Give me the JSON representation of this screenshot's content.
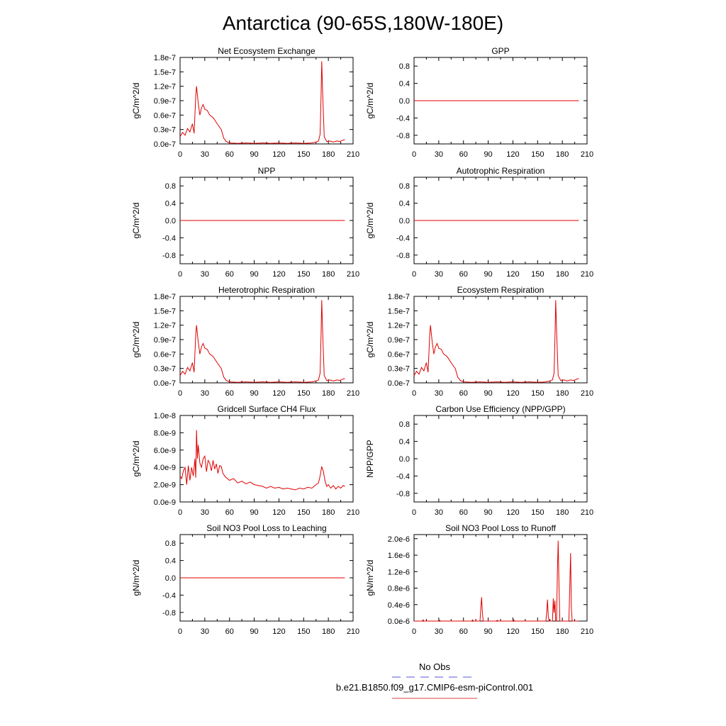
{
  "figure": {
    "title": "Antarctica (90-65S,180W-180E)"
  },
  "legend": {
    "entries": [
      {
        "label": "No Obs",
        "color": "#5555dd",
        "dashed": true
      },
      {
        "label": "b.e21.B1850.f09_g17.CMIP6-esm-piControl.001",
        "color": "#e04040",
        "dashed": false
      }
    ]
  },
  "colors": {
    "series": "#e00000",
    "axis": "#000000"
  },
  "chart_data": [
    {
      "type": "line",
      "title": "Net Ecosystem Exchange",
      "ylabel": "gC/m^2/d",
      "xlim": [
        0,
        210
      ],
      "ylim": [
        0,
        1.8e-07
      ],
      "xticks": [
        0,
        30,
        60,
        90,
        120,
        150,
        180,
        210
      ],
      "yticks": [
        0,
        3e-08,
        6e-08,
        9e-08,
        1.2e-07,
        1.5e-07,
        1.8e-07
      ],
      "ytick_labels": [
        "0.0e-7",
        "0.3e-7",
        "0.6e-7",
        "0.9e-7",
        "1.2e-7",
        "1.5e-7",
        "1.8e-7"
      ],
      "series": [
        {
          "x": [
            0,
            3,
            6,
            9,
            12,
            15,
            17,
            19,
            20,
            22,
            24,
            26,
            28,
            30,
            33,
            36,
            40,
            45,
            50,
            53,
            56,
            60,
            70,
            80,
            90,
            100,
            110,
            120,
            130,
            140,
            150,
            160,
            165,
            168,
            170,
            171,
            172,
            173,
            175,
            178,
            182,
            186,
            190,
            194,
            198,
            200
          ],
          "y": [
            1.5e-08,
            2.4e-08,
            1.8e-08,
            3.2e-08,
            2.5e-08,
            4.2e-08,
            2.2e-08,
            1e-07,
            1.2e-07,
            8.5e-08,
            6e-08,
            7.5e-08,
            8.2e-08,
            7.2e-08,
            7e-08,
            6e-08,
            5.5e-08,
            4.2e-08,
            3e-08,
            1.2e-08,
            5e-09,
            2e-09,
            1e-09,
            2e-09,
            1e-09,
            2e-09,
            1e-09,
            2e-09,
            1e-09,
            2e-09,
            1e-09,
            2e-09,
            4e-09,
            6e-09,
            2e-08,
            9e-08,
            1.72e-07,
            1.1e-07,
            1.5e-08,
            5e-09,
            6e-09,
            4e-09,
            6e-09,
            5e-09,
            8e-09,
            9e-09
          ]
        }
      ]
    },
    {
      "type": "line",
      "title": "GPP",
      "ylabel": "gC/m^2/d",
      "xlim": [
        0,
        210
      ],
      "ylim": [
        -1,
        1
      ],
      "xticks": [
        0,
        30,
        60,
        90,
        120,
        150,
        180,
        210
      ],
      "yticks": [
        -0.8,
        -0.4,
        0,
        0.4,
        0.8
      ],
      "ytick_labels": [
        "-0.8",
        "-0.4",
        "0.0",
        "0.4",
        "0.8"
      ],
      "series": [
        {
          "x": [
            0,
            200
          ],
          "y": [
            0,
            0
          ]
        }
      ]
    },
    {
      "type": "line",
      "title": "NPP",
      "ylabel": "gC/m^2/d",
      "xlim": [
        0,
        210
      ],
      "ylim": [
        -1,
        1
      ],
      "xticks": [
        0,
        30,
        60,
        90,
        120,
        150,
        180,
        210
      ],
      "yticks": [
        -0.8,
        -0.4,
        0,
        0.4,
        0.8
      ],
      "ytick_labels": [
        "-0.8",
        "-0.4",
        "0.0",
        "0.4",
        "0.8"
      ],
      "series": [
        {
          "x": [
            0,
            200
          ],
          "y": [
            0,
            0
          ]
        }
      ]
    },
    {
      "type": "line",
      "title": "Autotrophic Respiration",
      "ylabel": "gC/m^2/d",
      "xlim": [
        0,
        210
      ],
      "ylim": [
        -1,
        1
      ],
      "xticks": [
        0,
        30,
        60,
        90,
        120,
        150,
        180,
        210
      ],
      "yticks": [
        -0.8,
        -0.4,
        0,
        0.4,
        0.8
      ],
      "ytick_labels": [
        "-0.8",
        "-0.4",
        "0.0",
        "0.4",
        "0.8"
      ],
      "series": [
        {
          "x": [
            0,
            200
          ],
          "y": [
            0,
            0
          ]
        }
      ]
    },
    {
      "type": "line",
      "title": "Heterotrophic Respiration",
      "ylabel": "gC/m^2/d",
      "xlim": [
        0,
        210
      ],
      "ylim": [
        0,
        1.8e-07
      ],
      "xticks": [
        0,
        30,
        60,
        90,
        120,
        150,
        180,
        210
      ],
      "yticks": [
        0,
        3e-08,
        6e-08,
        9e-08,
        1.2e-07,
        1.5e-07,
        1.8e-07
      ],
      "ytick_labels": [
        "0.0e-7",
        "0.3e-7",
        "0.6e-7",
        "0.9e-7",
        "1.2e-7",
        "1.5e-7",
        "1.8e-7"
      ],
      "series": [
        {
          "x": [
            0,
            3,
            6,
            9,
            12,
            15,
            17,
            19,
            20,
            22,
            24,
            26,
            28,
            30,
            33,
            36,
            40,
            45,
            50,
            53,
            56,
            60,
            70,
            80,
            90,
            100,
            110,
            120,
            130,
            140,
            150,
            160,
            165,
            168,
            170,
            171,
            172,
            173,
            175,
            178,
            182,
            186,
            190,
            194,
            198,
            200
          ],
          "y": [
            1.5e-08,
            2.4e-08,
            1.8e-08,
            3.2e-08,
            2.5e-08,
            4.2e-08,
            2.2e-08,
            1e-07,
            1.2e-07,
            8.5e-08,
            6e-08,
            7.5e-08,
            8.2e-08,
            7.2e-08,
            7e-08,
            6e-08,
            5.5e-08,
            4.2e-08,
            3e-08,
            1.2e-08,
            5e-09,
            2e-09,
            1e-09,
            2e-09,
            1e-09,
            2e-09,
            1e-09,
            2e-09,
            1e-09,
            2e-09,
            1e-09,
            2e-09,
            4e-09,
            6e-09,
            2e-08,
            9e-08,
            1.72e-07,
            1.1e-07,
            1.5e-08,
            5e-09,
            6e-09,
            4e-09,
            6e-09,
            5e-09,
            8e-09,
            9e-09
          ]
        }
      ]
    },
    {
      "type": "line",
      "title": "Ecosystem Respiration",
      "ylabel": "gC/m^2/d",
      "xlim": [
        0,
        210
      ],
      "ylim": [
        0,
        1.8e-07
      ],
      "xticks": [
        0,
        30,
        60,
        90,
        120,
        150,
        180,
        210
      ],
      "yticks": [
        0,
        3e-08,
        6e-08,
        9e-08,
        1.2e-07,
        1.5e-07,
        1.8e-07
      ],
      "ytick_labels": [
        "0.0e-7",
        "0.3e-7",
        "0.6e-7",
        "0.9e-7",
        "1.2e-7",
        "1.5e-7",
        "1.8e-7"
      ],
      "series": [
        {
          "x": [
            0,
            3,
            6,
            9,
            12,
            15,
            17,
            19,
            20,
            22,
            24,
            26,
            28,
            30,
            33,
            36,
            40,
            45,
            50,
            53,
            56,
            60,
            70,
            80,
            90,
            100,
            110,
            120,
            130,
            140,
            150,
            160,
            165,
            168,
            170,
            171,
            172,
            173,
            175,
            178,
            182,
            186,
            190,
            194,
            198,
            200
          ],
          "y": [
            1.5e-08,
            2.4e-08,
            1.8e-08,
            3.2e-08,
            2.5e-08,
            4.2e-08,
            2.2e-08,
            1e-07,
            1.2e-07,
            8.5e-08,
            6e-08,
            7.5e-08,
            8.2e-08,
            7.2e-08,
            7e-08,
            6e-08,
            5.5e-08,
            4.2e-08,
            3e-08,
            1.2e-08,
            5e-09,
            2e-09,
            1e-09,
            2e-09,
            1e-09,
            2e-09,
            1e-09,
            2e-09,
            1e-09,
            2e-09,
            1e-09,
            2e-09,
            4e-09,
            6e-09,
            2e-08,
            9e-08,
            1.72e-07,
            1.1e-07,
            1.5e-08,
            5e-09,
            6e-09,
            4e-09,
            6e-09,
            5e-09,
            8e-09,
            9e-09
          ]
        }
      ]
    },
    {
      "type": "line",
      "title": "Gridcell Surface CH4 Flux",
      "ylabel": "gC/m^2/d",
      "xlim": [
        0,
        210
      ],
      "ylim": [
        0,
        1e-08
      ],
      "xticks": [
        0,
        30,
        60,
        90,
        120,
        150,
        180,
        210
      ],
      "yticks": [
        0,
        2e-09,
        4e-09,
        6e-09,
        8e-09,
        1e-08
      ],
      "ytick_labels": [
        "0.0e-9",
        "2.0e-9",
        "4.0e-9",
        "6.0e-9",
        "8.0e-9",
        "1.0e-8"
      ],
      "series": [
        {
          "x": [
            0,
            2,
            4,
            6,
            8,
            10,
            12,
            14,
            16,
            18,
            19,
            20,
            21,
            22,
            24,
            26,
            28,
            30,
            32,
            34,
            36,
            38,
            40,
            42,
            44,
            46,
            48,
            50,
            52,
            55,
            60,
            65,
            70,
            75,
            80,
            85,
            90,
            95,
            100,
            105,
            110,
            115,
            120,
            125,
            130,
            135,
            140,
            145,
            150,
            155,
            160,
            165,
            168,
            170,
            172,
            174,
            176,
            178,
            180,
            183,
            186,
            189,
            192,
            195,
            198,
            200
          ],
          "y": [
            3e-09,
            2.7e-09,
            3.6e-09,
            4e-09,
            2e-09,
            4.2e-09,
            2.5e-09,
            4e-09,
            3e-09,
            5e-09,
            2.8e-09,
            8.3e-09,
            5e-09,
            6.6e-09,
            4.5e-09,
            4e-09,
            5e-09,
            5.3e-09,
            3.5e-09,
            4.8e-09,
            4.5e-09,
            3.6e-09,
            4.8e-09,
            3.8e-09,
            4.4e-09,
            3.3e-09,
            4.2e-09,
            4.1e-09,
            3.3e-09,
            2.9e-09,
            2.5e-09,
            2.7e-09,
            2.2e-09,
            2.4e-09,
            2.1e-09,
            2.3e-09,
            2e-09,
            1.9e-09,
            1.8e-09,
            1.6e-09,
            1.8e-09,
            1.6e-09,
            1.7e-09,
            1.5e-09,
            1.6e-09,
            1.5e-09,
            1.4e-09,
            1.6e-09,
            1.5e-09,
            1.7e-09,
            1.6e-09,
            2e-09,
            2.2e-09,
            3e-09,
            4.1e-09,
            3.5e-09,
            2.4e-09,
            1.8e-09,
            2e-09,
            1.6e-09,
            1.9e-09,
            1.5e-09,
            1.8e-09,
            1.6e-09,
            1.9e-09,
            1.8e-09
          ]
        }
      ]
    },
    {
      "type": "line",
      "title": "Carbon Use Efficiency (NPP/GPP)",
      "ylabel": "NPP/GPP",
      "xlim": [
        0,
        210
      ],
      "ylim": [
        -1,
        1
      ],
      "xticks": [
        0,
        30,
        60,
        90,
        120,
        150,
        180,
        210
      ],
      "yticks": [
        -0.8,
        -0.4,
        0,
        0.4,
        0.8
      ],
      "ytick_labels": [
        "-0.8",
        "-0.4",
        "0.0",
        "0.4",
        "0.8"
      ],
      "series": []
    },
    {
      "type": "line",
      "title": "Soil NO3 Pool Loss to Leaching",
      "ylabel": "gN/m^2/d",
      "xlim": [
        0,
        210
      ],
      "ylim": [
        -1,
        1
      ],
      "xticks": [
        0,
        30,
        60,
        90,
        120,
        150,
        180,
        210
      ],
      "yticks": [
        -0.8,
        -0.4,
        0,
        0.4,
        0.8
      ],
      "ytick_labels": [
        "-0.8",
        "-0.4",
        "0.0",
        "0.4",
        "0.8"
      ],
      "series": [
        {
          "x": [
            0,
            200
          ],
          "y": [
            0,
            0
          ]
        }
      ]
    },
    {
      "type": "line",
      "title": "Soil NO3 Pool Loss to Runoff",
      "ylabel": "gN/m^2/d",
      "xlim": [
        0,
        210
      ],
      "ylim": [
        0,
        2.1e-06
      ],
      "xticks": [
        0,
        30,
        60,
        90,
        120,
        150,
        180,
        210
      ],
      "yticks": [
        0,
        4e-07,
        8e-07,
        1.2e-06,
        1.6e-06,
        2e-06
      ],
      "ytick_labels": [
        "0.0e-6",
        "0.4e-6",
        "0.8e-6",
        "1.2e-6",
        "1.6e-6",
        "2.0e-6"
      ],
      "series": [
        {
          "x": [
            0,
            10,
            11,
            12,
            30,
            31,
            32,
            70,
            71,
            72,
            80,
            81,
            82,
            83,
            84,
            85,
            100,
            101,
            102,
            120,
            121,
            122,
            160,
            161,
            162,
            163,
            164,
            168,
            169,
            170,
            171,
            172,
            173,
            174,
            175,
            176,
            177,
            178,
            188,
            189,
            190,
            191,
            192,
            200
          ],
          "y": [
            0,
            0,
            3e-08,
            0,
            0,
            2e-08,
            0,
            0,
            3e-08,
            0,
            0,
            3e-07,
            5.8e-07,
            2e-07,
            0,
            0,
            0,
            2e-08,
            0,
            0,
            3e-08,
            0,
            0,
            2e-07,
            5.2e-07,
            1e-07,
            0,
            0,
            5.5e-07,
            2e-07,
            5e-07,
            0,
            0,
            1.2e-06,
            1.95e-06,
            8e-07,
            0,
            0,
            0,
            8e-07,
            1.65e-06,
            3e-07,
            0,
            0
          ]
        }
      ]
    }
  ]
}
